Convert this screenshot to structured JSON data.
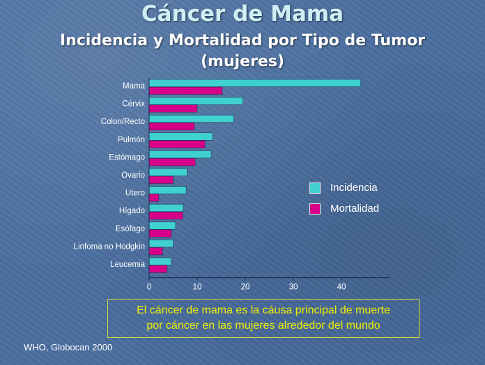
{
  "title": "Cáncer de Mama",
  "subtitle_line1": "Incidencia y Mortalidad por Tipo de Tumor",
  "subtitle_line2": "(mujeres)",
  "note_line1": "El cáncer de mama es la cáusa principal de muerte",
  "note_line2": "por cáncer en las mujeres alrededor del mundo",
  "source": "WHO, Globocan 2000",
  "colors": {
    "incidencia": "#40d0d0",
    "mortalidad": "#d8008a",
    "axis": "#1a2a4a",
    "tick_text": "#ffffff"
  },
  "chart_data": {
    "type": "bar",
    "orientation": "horizontal",
    "categories": [
      "Mama",
      "Cérvix",
      "Colon/Recto",
      "Pulmón",
      "Estómago",
      "Ovario",
      "Utero",
      "Hígado",
      "Esófago",
      "Linfoma no Hodgkin",
      "Leucemia"
    ],
    "series": [
      {
        "name": "Incidencia",
        "values": [
          44.0,
          19.5,
          17.6,
          13.2,
          12.9,
          7.9,
          7.7,
          7.1,
          5.5,
          5.0,
          4.6
        ]
      },
      {
        "name": "Mortalidad",
        "values": [
          15.2,
          10.0,
          9.4,
          11.6,
          9.6,
          5.0,
          2.0,
          7.0,
          4.6,
          2.8,
          3.7
        ]
      }
    ],
    "xticks": [
      "0",
      "10",
      "20",
      "30",
      "40"
    ],
    "xlim": [
      0,
      50
    ],
    "legend_position": "right",
    "grid": false
  }
}
